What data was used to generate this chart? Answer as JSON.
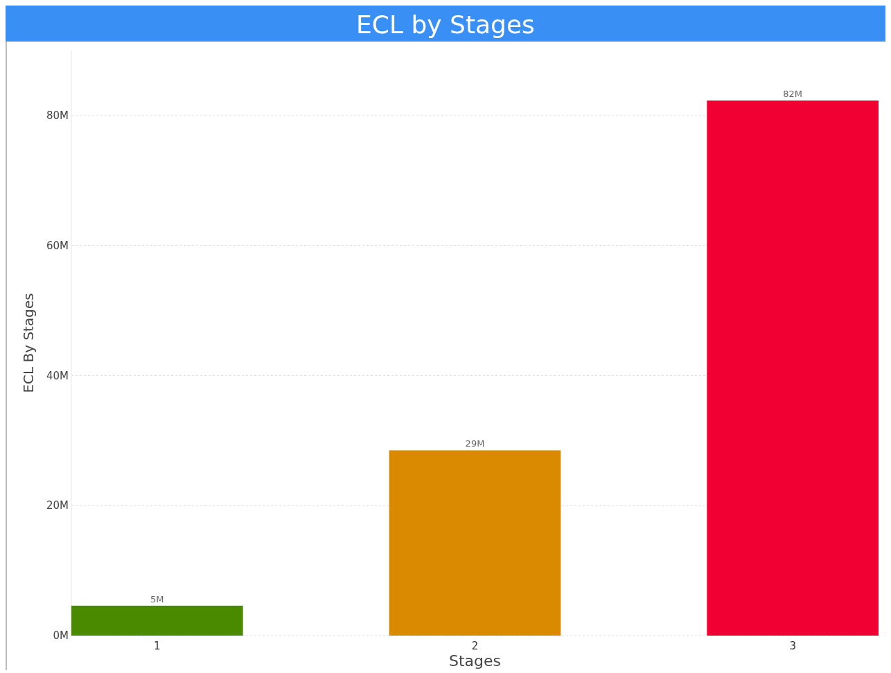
{
  "chart_data": {
    "type": "bar",
    "title": "ECL by Stages",
    "xlabel": "Stages",
    "ylabel": "ECL By Stages",
    "categories": [
      "1",
      "2",
      "3"
    ],
    "values": [
      4.6,
      28.5,
      82.3
    ],
    "colors": [
      "#4a8a00",
      "#d98a00",
      "#f00033"
    ],
    "value_labels": [
      "5M",
      "29M",
      "82M"
    ],
    "ylim": [
      0,
      90
    ],
    "yticks": [
      {
        "value": 0,
        "label": "0M"
      },
      {
        "value": 20,
        "label": "20M"
      },
      {
        "value": 40,
        "label": "40M"
      },
      {
        "value": 60,
        "label": "60M"
      },
      {
        "value": 80,
        "label": "80M"
      }
    ],
    "grid": "y"
  }
}
